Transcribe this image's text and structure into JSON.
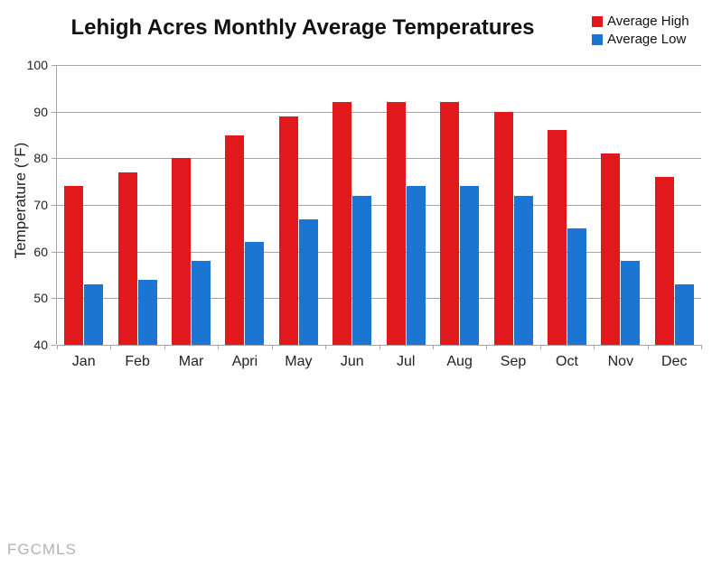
{
  "title": "Lehigh Acres Monthly Average Temperatures",
  "watermark": "FGCMLS",
  "colors": {
    "high": "#e2191c",
    "low": "#1b75d2",
    "grid": "#a6a6a6"
  },
  "chart_data": {
    "type": "bar",
    "title": "Lehigh Acres Monthly Average Temperatures",
    "categories": [
      "Jan",
      "Feb",
      "Mar",
      "Apri",
      "May",
      "Jun",
      "Jul",
      "Aug",
      "Sep",
      "Oct",
      "Nov",
      "Dec"
    ],
    "series": [
      {
        "name": "Average High",
        "color": "#e2191c",
        "values": [
          74,
          77,
          80,
          85,
          89,
          92,
          92,
          92,
          90,
          86,
          81,
          76
        ]
      },
      {
        "name": "Average Low",
        "color": "#1b75d2",
        "values": [
          53,
          54,
          58,
          62,
          67,
          72,
          74,
          74,
          72,
          65,
          58,
          53
        ]
      }
    ],
    "xlabel": "",
    "ylabel": "Temperature (°F)",
    "ylim": [
      40,
      100
    ],
    "ytick_step": 10,
    "grid": true,
    "legend_position": "top-right"
  }
}
